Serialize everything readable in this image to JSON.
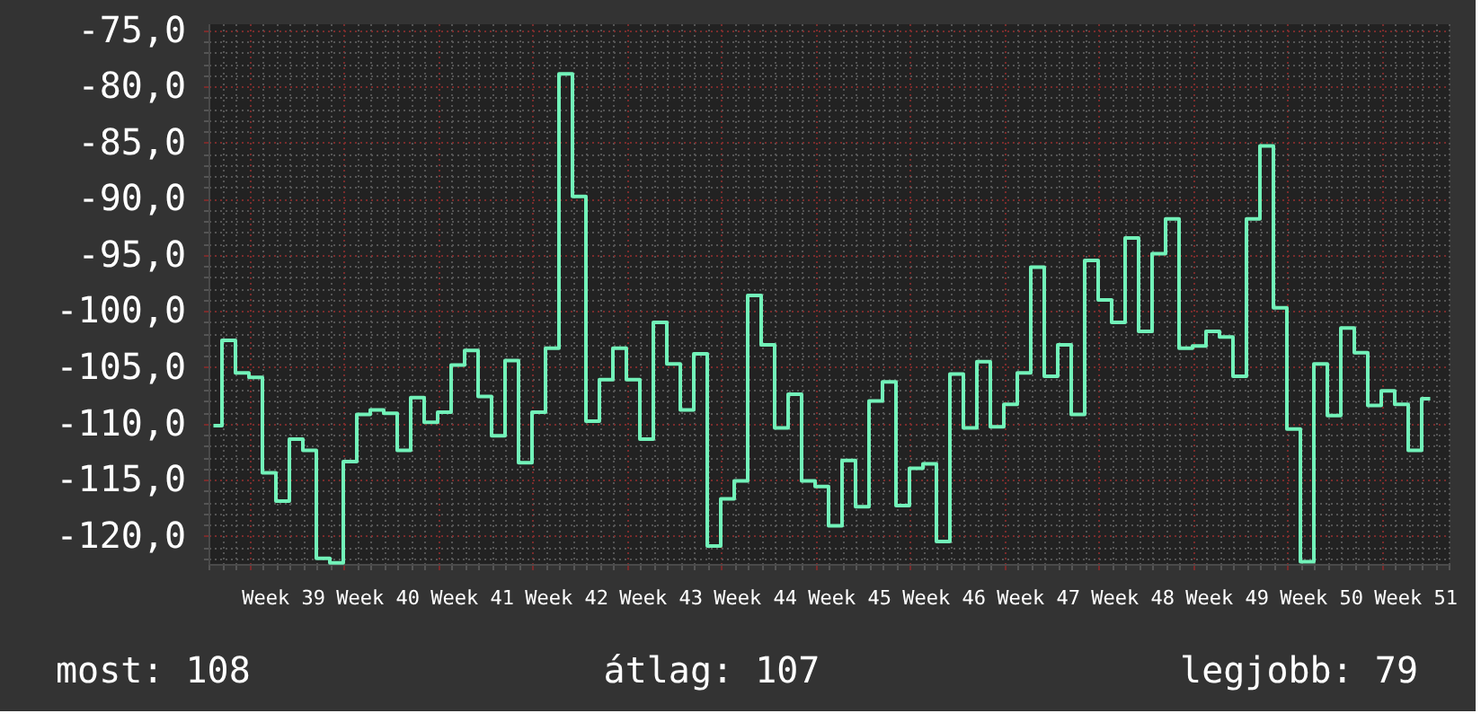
{
  "chart_data": {
    "type": "step",
    "categories": [
      null,
      null,
      null,
      null,
      null,
      "Week 39",
      null,
      null,
      null,
      null,
      null,
      null,
      "Week 40",
      null,
      null,
      null,
      null,
      null,
      null,
      "Week 41",
      null,
      null,
      null,
      null,
      null,
      null,
      "Week 42",
      null,
      null,
      null,
      null,
      null,
      null,
      "Week 43",
      null,
      null,
      null,
      null,
      null,
      null,
      "Week 44",
      null,
      null,
      null,
      null,
      null,
      null,
      "Week 45",
      null,
      null,
      null,
      null,
      null,
      null,
      "Week 46",
      null,
      null,
      null,
      null,
      null,
      null,
      "Week 47",
      null,
      null,
      null,
      null,
      null,
      null,
      "Week 48",
      null,
      null,
      null,
      null,
      null,
      null,
      "Week 49",
      null,
      null,
      null,
      null,
      null,
      null,
      "Week 50",
      null,
      null,
      null,
      null,
      null,
      null,
      "Week 51",
      null,
      null
    ],
    "series": [
      {
        "color": "#72f2b9",
        "values": [
          -110.2,
          -102.6,
          -105.5,
          -105.9,
          -114.4,
          -116.9,
          -111.4,
          -112.4,
          -122.0,
          -122.4,
          -113.4,
          -109.2,
          -108.8,
          -109.1,
          -112.4,
          -107.7,
          -109.9,
          -109.0,
          -104.8,
          -103.5,
          -107.6,
          -111.1,
          -104.4,
          -113.5,
          -109.0,
          -103.3,
          -78.9,
          -89.8,
          -109.8,
          -106.1,
          -103.3,
          -106.1,
          -111.4,
          -101.0,
          -104.7,
          -108.8,
          -103.8,
          -120.9,
          -116.7,
          -115.1,
          -98.6,
          -103.0,
          -110.4,
          -107.4,
          -115.1,
          -115.6,
          -119.1,
          -113.3,
          -117.4,
          -108.0,
          -106.3,
          -117.3,
          -114.0,
          -113.6,
          -120.5,
          -105.6,
          -110.4,
          -104.5,
          -110.3,
          -108.3,
          -105.5,
          -96.1,
          -105.8,
          -103.0,
          -109.2,
          -95.5,
          -99.0,
          -101.0,
          -93.5,
          -101.8,
          -94.9,
          -91.8,
          -103.3,
          -103.1,
          -101.8,
          -102.3,
          -105.8,
          -91.8,
          -85.3,
          -99.7,
          -110.5,
          -122.3,
          -104.7,
          -109.3,
          -101.5,
          -103.7,
          -108.4,
          -107.1,
          -108.3,
          -112.4,
          -107.8,
          null
        ]
      }
    ],
    "ylim": [
      -122.5,
      -74.4
    ],
    "yticks": [
      {
        "value": -122,
        "label": null
      },
      {
        "value": -121,
        "label": null
      },
      {
        "value": -120,
        "label": "-120,0"
      },
      {
        "value": -119,
        "label": null
      },
      {
        "value": -118,
        "label": null
      },
      {
        "value": -117,
        "label": null
      },
      {
        "value": -116,
        "label": null
      },
      {
        "value": -115,
        "label": "-115,0"
      },
      {
        "value": -114,
        "label": null
      },
      {
        "value": -113,
        "label": null
      },
      {
        "value": -112,
        "label": null
      },
      {
        "value": -111,
        "label": null
      },
      {
        "value": -110,
        "label": "-110,0"
      },
      {
        "value": -109,
        "label": null
      },
      {
        "value": -108,
        "label": null
      },
      {
        "value": -107,
        "label": null
      },
      {
        "value": -106,
        "label": null
      },
      {
        "value": -105,
        "label": "-105,0"
      },
      {
        "value": -104,
        "label": null
      },
      {
        "value": -103,
        "label": null
      },
      {
        "value": -102,
        "label": null
      },
      {
        "value": -101,
        "label": null
      },
      {
        "value": -100,
        "label": "-100,0"
      },
      {
        "value": -99,
        "label": null
      },
      {
        "value": -98,
        "label": null
      },
      {
        "value": -97,
        "label": null
      },
      {
        "value": -96,
        "label": null
      },
      {
        "value": -95,
        "label": "-95,0"
      },
      {
        "value": -94,
        "label": null
      },
      {
        "value": -93,
        "label": null
      },
      {
        "value": -92,
        "label": null
      },
      {
        "value": -91,
        "label": null
      },
      {
        "value": -90,
        "label": "-90,0"
      },
      {
        "value": -89,
        "label": null
      },
      {
        "value": -88,
        "label": null
      },
      {
        "value": -87,
        "label": null
      },
      {
        "value": -86,
        "label": null
      },
      {
        "value": -85,
        "label": "-85,0"
      },
      {
        "value": -84,
        "label": null
      },
      {
        "value": -83,
        "label": null
      },
      {
        "value": -82,
        "label": null
      },
      {
        "value": -81,
        "label": null
      },
      {
        "value": -80,
        "label": "-80,0"
      },
      {
        "value": -79,
        "label": null
      },
      {
        "value": -78,
        "label": null
      },
      {
        "value": -77,
        "label": null
      },
      {
        "value": -76,
        "label": null
      },
      {
        "value": -75,
        "label": "-75,0"
      }
    ],
    "grid": true,
    "annotations": [
      "most: 108",
      "átlag: 107",
      "legjobb: 79"
    ]
  }
}
